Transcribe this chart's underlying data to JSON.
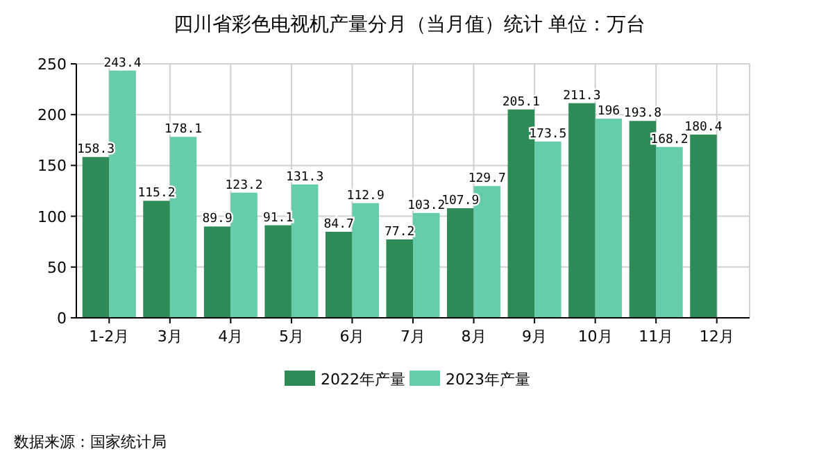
{
  "chart_data": {
    "type": "bar",
    "title": "四川省彩色电视机产量分月（当月值）统计  单位：万台",
    "categories": [
      "1-2月",
      "3月",
      "4月",
      "5月",
      "6月",
      "7月",
      "8月",
      "9月",
      "10月",
      "11月",
      "12月"
    ],
    "series": [
      {
        "name": "2022年产量",
        "color": "#2e8b57",
        "values": [
          158.3,
          115.2,
          89.9,
          91.1,
          84.7,
          77.2,
          107.9,
          205.1,
          211.3,
          193.8,
          180.4
        ]
      },
      {
        "name": "2023年产量",
        "color": "#66cdaa",
        "values": [
          243.4,
          178.1,
          123.2,
          131.3,
          112.9,
          103.2,
          129.7,
          173.5,
          196,
          168.2,
          null
        ]
      }
    ],
    "ylim": [
      0,
      250
    ],
    "yticks": [
      0,
      50,
      100,
      150,
      200,
      250
    ],
    "grid": true,
    "legend": "bottom",
    "data_labels": true,
    "annotations": [
      "数据来源：国家统计局"
    ]
  }
}
